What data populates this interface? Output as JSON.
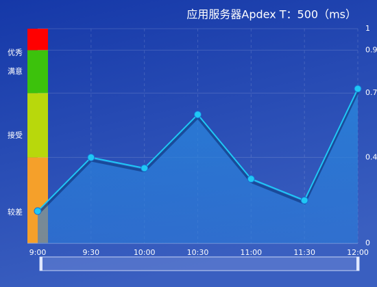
{
  "chart_data": {
    "type": "line",
    "title": "应用服务器Apdex T：500（ms）",
    "categories": [
      "9:00",
      "9:30",
      "10:00",
      "10:30",
      "11:00",
      "11:30",
      "12:00"
    ],
    "series": [
      {
        "color": "#1fc8f5",
        "values": [
          0.15,
          0.4,
          0.35,
          0.6,
          0.3,
          0.2,
          0.72
        ]
      }
    ],
    "ylim": [
      0,
      1
    ],
    "yticks": [
      0,
      0.4,
      0.7,
      0.9,
      1
    ],
    "grid": true,
    "bands": [
      {
        "label": "较差",
        "from": 0,
        "to": 0.4,
        "color": "#f5a02a"
      },
      {
        "label": "接受",
        "from": 0.4,
        "to": 0.7,
        "color": "#b8d80c"
      },
      {
        "label": "满意",
        "from": 0.7,
        "to": 0.9,
        "color": "#3cc20c"
      },
      {
        "label": "优秀",
        "from": 0.9,
        "to": 1,
        "color": "#ff0000"
      }
    ]
  }
}
